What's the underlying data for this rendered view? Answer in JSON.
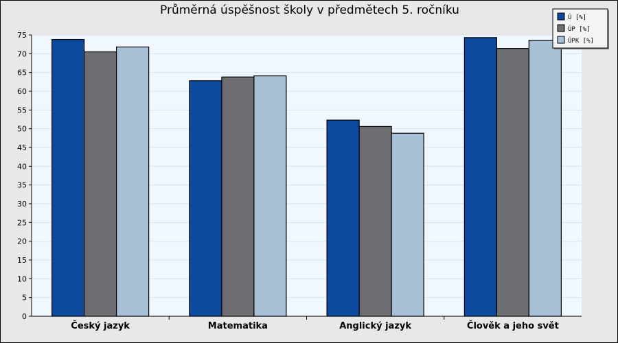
{
  "chart_data": {
    "type": "bar",
    "title": "Průměrná úspěšnost školy v předmětech 5. ročníku",
    "xlabel": "",
    "ylabel": "",
    "categories": [
      "Český jazyk",
      "Matematika",
      "Anglický jazyk",
      "Člověk a jeho svět"
    ],
    "series": [
      {
        "name": "Ú [%]",
        "color": "#0d4a9e",
        "values": [
          73.8,
          62.8,
          52.3,
          74.3
        ]
      },
      {
        "name": "ÚP [%]",
        "color": "#6d6e72",
        "values": [
          70.5,
          63.8,
          50.6,
          71.4
        ]
      },
      {
        "name": "ÚPK [%]",
        "color": "#a8c0d6",
        "values": [
          71.8,
          64.1,
          48.8,
          73.6
        ]
      }
    ],
    "ylim": [
      0,
      75
    ],
    "yticks": [
      0,
      5,
      10,
      15,
      20,
      25,
      30,
      35,
      40,
      45,
      50,
      55,
      60,
      65,
      70,
      75
    ],
    "grid": true,
    "legend_position": "top-right",
    "colors": {
      "plot_background": "#f0f7ff",
      "frame_background": "#e8e8e8",
      "gridline": "#d8e4f0"
    }
  }
}
